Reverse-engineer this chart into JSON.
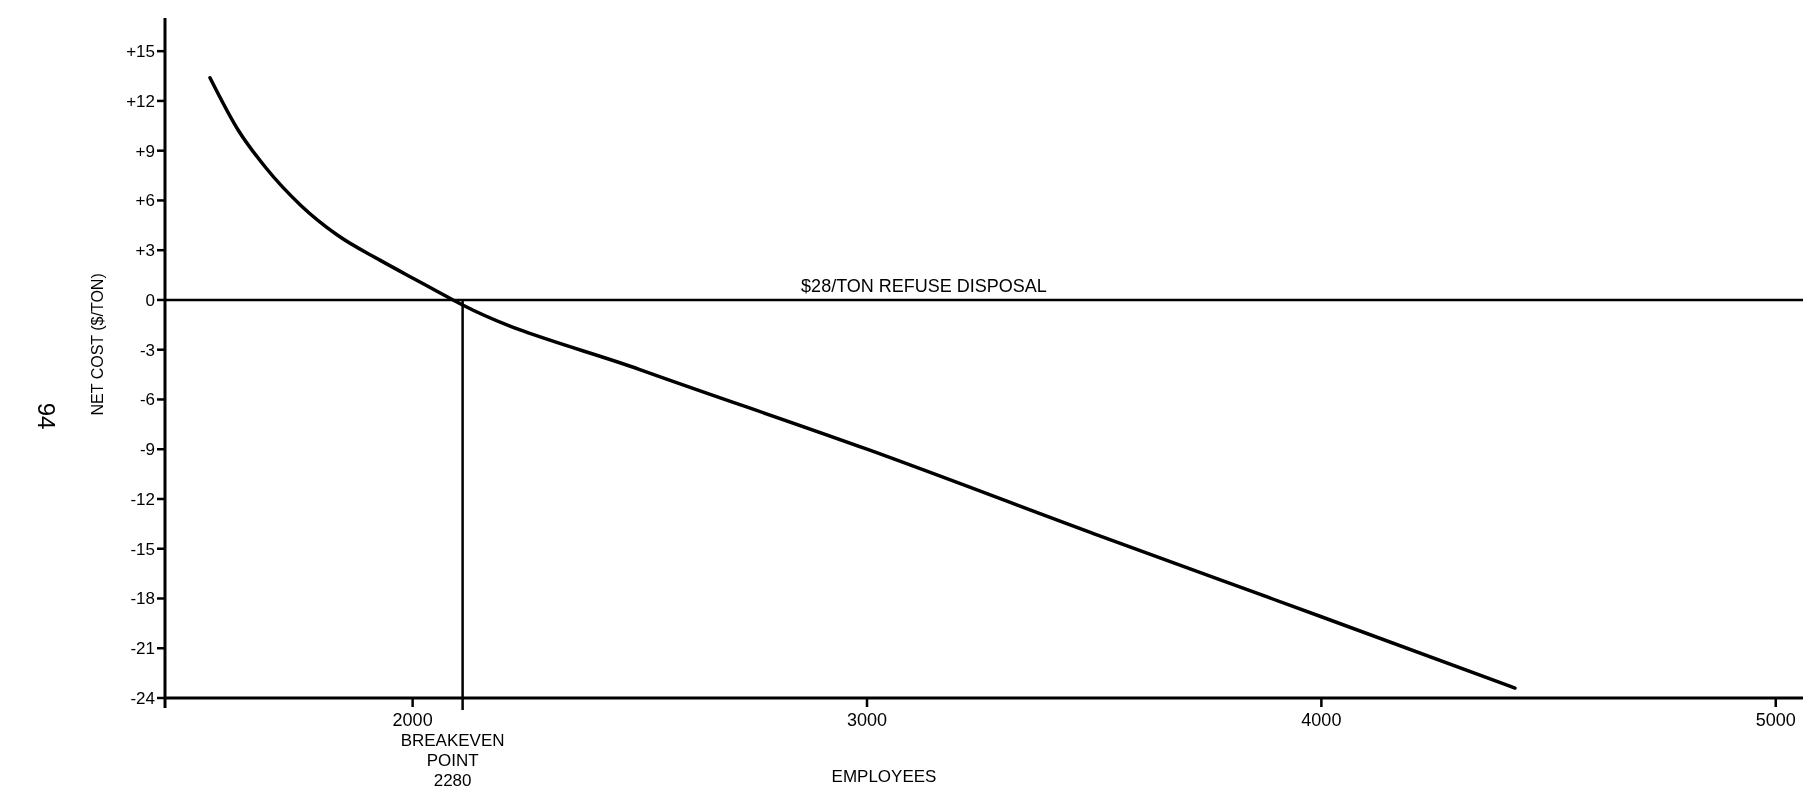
{
  "chart_data": {
    "type": "line",
    "xlabel": "EMPLOYEES",
    "ylabel": "NET COST ($/TON)",
    "x": [
      1554,
      1617,
      1676,
      1754,
      1835,
      1928,
      2015,
      2089,
      2110,
      2500,
      3000,
      3500,
      4000,
      4426
    ],
    "series": [
      {
        "color": "#000000",
        "values": [
          13.4,
          10.2,
          8.0,
          5.7,
          3.9,
          2.4,
          1.1,
          0.0,
          -0.3,
          -4.2,
          -9.0,
          -14.1,
          -19.1,
          -23.4
        ]
      }
    ],
    "xlim": [
      1455,
      5060
    ],
    "ylim": [
      -24,
      17
    ],
    "xticks": [
      2000,
      3000,
      4000,
      5000
    ],
    "yticks": [
      {
        "value": 15,
        "label": "+15"
      },
      {
        "value": 12,
        "label": "+12"
      },
      {
        "value": 9,
        "label": "+9"
      },
      {
        "value": 6,
        "label": "+6"
      },
      {
        "value": 3,
        "label": "+3"
      },
      0,
      -3,
      -6,
      -9,
      -12,
      -15,
      -18,
      -21,
      -24
    ],
    "ref_lines": [
      {
        "axis": "y",
        "value": 0,
        "label": "$28/TON  REFUSE DISPOSAL"
      },
      {
        "axis": "x",
        "value": 2110,
        "label": "BREAKEVEN\nPOINT\n2280"
      }
    ],
    "annotations": [
      "94"
    ],
    "grid": false,
    "marker": "none",
    "line_style": "solid"
  }
}
